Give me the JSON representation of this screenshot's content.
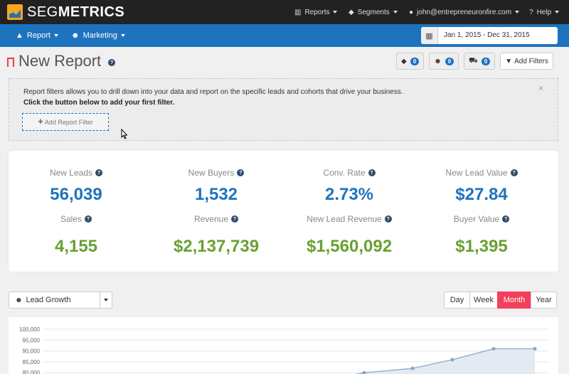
{
  "brand": {
    "name_light": "SEG",
    "name_bold": "METRICS"
  },
  "topnav": {
    "reports": {
      "label": "Reports",
      "icon": "bar-chart-icon"
    },
    "segments": {
      "label": "Segments",
      "icon": "tag-icon"
    },
    "user": {
      "label": "john@entrepreneuronfire.com",
      "icon": "user-icon"
    },
    "help": {
      "label": "Help",
      "icon": "question-circle-icon"
    }
  },
  "bluenav": {
    "report": {
      "label": "Report",
      "icon": "area-chart-icon"
    },
    "marketing": {
      "label": "Marketing",
      "icon": "users-icon"
    },
    "date_range": "Jan 1, 2015 - Dec 31, 2015"
  },
  "page": {
    "title": "New Report",
    "filter_counts": {
      "tags": "0",
      "groups": "0",
      "carts": "0"
    },
    "add_filters_label": "Add Filters"
  },
  "filter_box": {
    "line1": "Report filters allows you to drill down into your data and report on the specific leads and cohorts that drive your business.",
    "line2": "Click the button below to add your first filter.",
    "add_button": "Add Report Filter",
    "close": "×"
  },
  "metrics": [
    {
      "label": "New Leads",
      "value": "56,039"
    },
    {
      "label": "New Buyers",
      "value": "1,532"
    },
    {
      "label": "Conv. Rate",
      "value": "2.73%"
    },
    {
      "label": "New Lead Value",
      "value": "$27.84"
    },
    {
      "label": "Sales",
      "value": "4,155"
    },
    {
      "label": "Revenue",
      "value": "$2,137,739"
    },
    {
      "label": "New Lead Revenue",
      "value": "$1,560,092"
    },
    {
      "label": "Buyer Value",
      "value": "$1,395"
    }
  ],
  "chart_controls": {
    "selected": "Lead Growth",
    "periods": [
      "Day",
      "Week",
      "Month",
      "Year"
    ],
    "active_period": "Month"
  },
  "colors": {
    "nav": "#222222",
    "brand_blue": "#1e73be",
    "accent": "#f23f5b",
    "green": "#6aa033"
  },
  "chart_data": {
    "type": "area",
    "title": "",
    "xlabel": "",
    "ylabel": "",
    "y_ticks": [
      "100,000",
      "95,000",
      "90,000",
      "85,000",
      "80,000"
    ],
    "ylim": [
      80000,
      100000
    ],
    "grid": true,
    "series": [
      {
        "values": [
          78000,
          80000,
          82000,
          86000,
          91000,
          91000
        ]
      }
    ]
  }
}
